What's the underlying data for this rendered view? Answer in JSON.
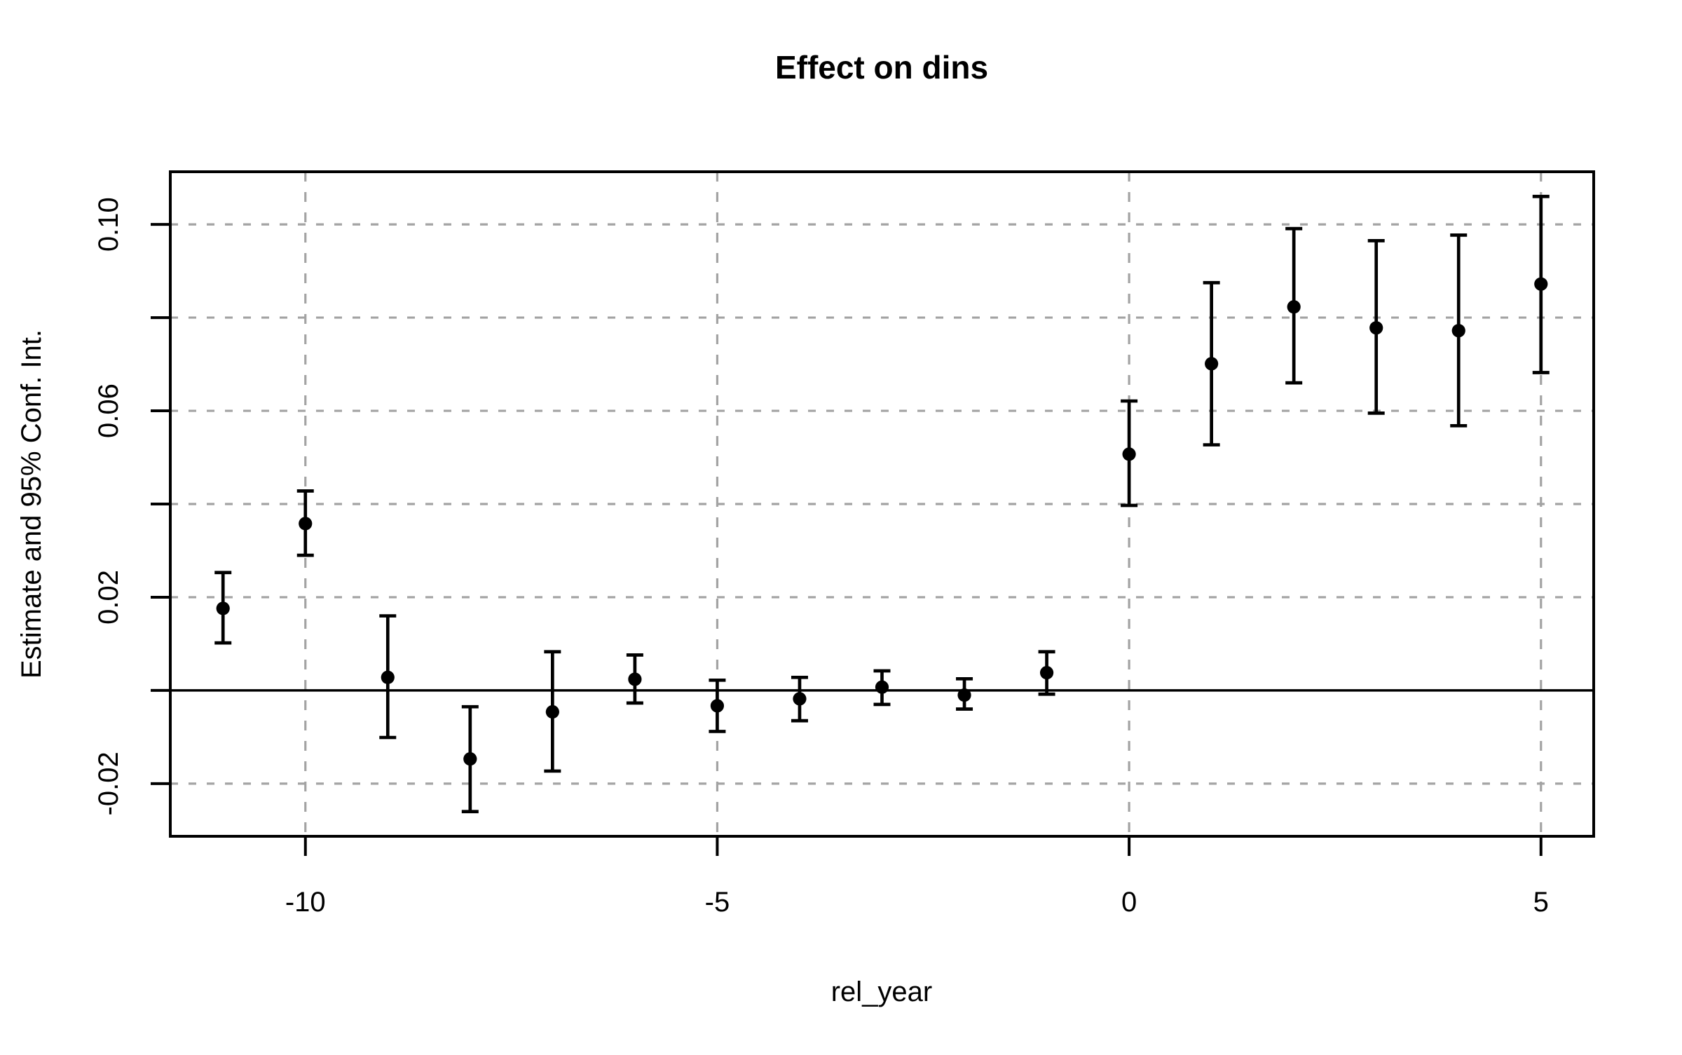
{
  "page": {
    "background_color": "#ffffff"
  },
  "chart_data": {
    "type": "scatter",
    "subtype": "event-study-errorbar",
    "title": "Effect on dins",
    "xlabel": "rel_year",
    "ylabel": "Estimate and 95% Conf. Int.",
    "legend_position": "none",
    "grid_on": true,
    "xlim": [
      -11.64,
      5.64
    ],
    "ylim": [
      -0.0313,
      0.1113
    ],
    "x_ticks": [
      {
        "value": -10,
        "label": "-10"
      },
      {
        "value": -5,
        "label": "-5"
      },
      {
        "value": 0,
        "label": "0"
      },
      {
        "value": 5,
        "label": "5"
      }
    ],
    "y_ticks": [
      {
        "value": -0.02,
        "label": "-0.02"
      },
      {
        "value": 0.0,
        "label": ""
      },
      {
        "value": 0.02,
        "label": "0.02"
      },
      {
        "value": 0.04,
        "label": ""
      },
      {
        "value": 0.06,
        "label": "0.06"
      },
      {
        "value": 0.08,
        "label": ""
      },
      {
        "value": 0.1,
        "label": "0.10"
      }
    ],
    "grid_x_values": [
      -10,
      -5,
      0,
      5
    ],
    "grid_y_values": [
      -0.02,
      0.02,
      0.04,
      0.06,
      0.08,
      0.1
    ],
    "reference_line_y": 0,
    "points": [
      {
        "x": -11,
        "estimate": 0.0176,
        "ci_low": 0.0102,
        "ci_high": 0.0253
      },
      {
        "x": -10,
        "estimate": 0.0358,
        "ci_low": 0.029,
        "ci_high": 0.0428
      },
      {
        "x": -9,
        "estimate": 0.0028,
        "ci_low": -0.0101,
        "ci_high": 0.016
      },
      {
        "x": -8,
        "estimate": -0.0147,
        "ci_low": -0.026,
        "ci_high": -0.0035
      },
      {
        "x": -7,
        "estimate": -0.0046,
        "ci_low": -0.0173,
        "ci_high": 0.0083
      },
      {
        "x": -6,
        "estimate": 0.0024,
        "ci_low": -0.0027,
        "ci_high": 0.0076
      },
      {
        "x": -5,
        "estimate": -0.0033,
        "ci_low": -0.0088,
        "ci_high": 0.0022
      },
      {
        "x": -4,
        "estimate": -0.0018,
        "ci_low": -0.0065,
        "ci_high": 0.0028
      },
      {
        "x": -3,
        "estimate": 0.0007,
        "ci_low": -0.003,
        "ci_high": 0.0042
      },
      {
        "x": -2,
        "estimate": -0.001,
        "ci_low": -0.004,
        "ci_high": 0.0025
      },
      {
        "x": -1,
        "estimate": 0.0038,
        "ci_low": -0.0008,
        "ci_high": 0.0083
      },
      {
        "x": 0,
        "estimate": 0.0507,
        "ci_low": 0.0397,
        "ci_high": 0.0621
      },
      {
        "x": 1,
        "estimate": 0.0701,
        "ci_low": 0.0527,
        "ci_high": 0.0875
      },
      {
        "x": 2,
        "estimate": 0.0823,
        "ci_low": 0.066,
        "ci_high": 0.0991
      },
      {
        "x": 3,
        "estimate": 0.0778,
        "ci_low": 0.0595,
        "ci_high": 0.0965
      },
      {
        "x": 4,
        "estimate": 0.0772,
        "ci_low": 0.0568,
        "ci_high": 0.0977
      },
      {
        "x": 5,
        "estimate": 0.0872,
        "ci_low": 0.0682,
        "ci_high": 0.106
      }
    ],
    "colors": {
      "point": "#000000",
      "error_bar": "#000000",
      "gridline": "#a3a3a3",
      "axis": "#000000",
      "reference_line": "#000000",
      "background": "#ffffff"
    }
  }
}
